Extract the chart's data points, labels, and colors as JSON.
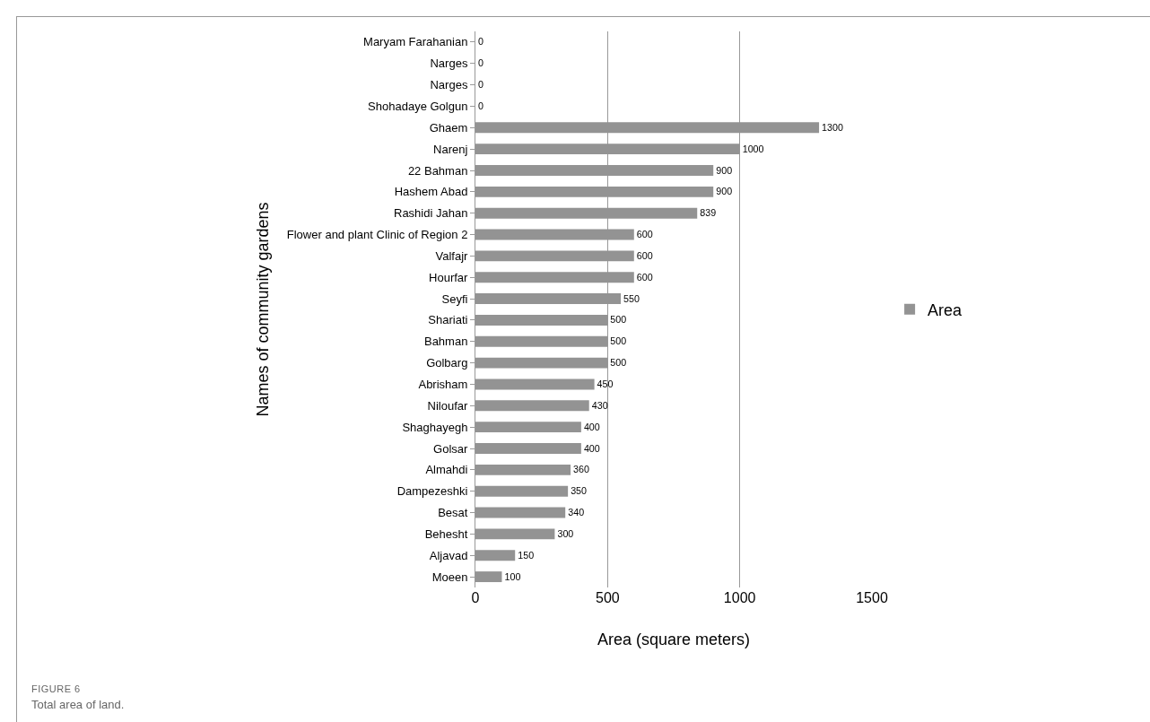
{
  "chart_data": {
    "type": "bar",
    "orientation": "horizontal",
    "xlabel": "Area (square meters)",
    "ylabel": "Names of community gardens",
    "categories": [
      "Maryam Farahanian",
      "Narges",
      "Narges",
      "Shohadaye Golgun",
      "Ghaem",
      "Narenj",
      "22 Bahman",
      "Hashem Abad",
      "Rashidi Jahan",
      "Flower and plant Clinic of Region 2",
      "Valfajr",
      "Hourfar",
      "Seyfi",
      "Shariati",
      "Bahman",
      "Golbarg",
      "Abrisham",
      "Niloufar",
      "Shaghayegh",
      "Golsar",
      "Almahdi",
      "Dampezeshki",
      "Besat",
      "Behesht",
      "Aljavad",
      "Moeen"
    ],
    "series": [
      {
        "name": "Area",
        "color": "#939393",
        "values": [
          0,
          0,
          0,
          0,
          1300,
          1000,
          900,
          900,
          839,
          600,
          600,
          600,
          550,
          500,
          500,
          500,
          450,
          430,
          400,
          400,
          360,
          350,
          340,
          300,
          150,
          100
        ]
      }
    ],
    "xlim": [
      0,
      1500
    ],
    "xticks": [
      0,
      500,
      1000,
      1500
    ],
    "grid": "x",
    "legend": "right",
    "data_labels": true,
    "annotations": [
      "FIGURE 6",
      "Total area of land."
    ]
  }
}
